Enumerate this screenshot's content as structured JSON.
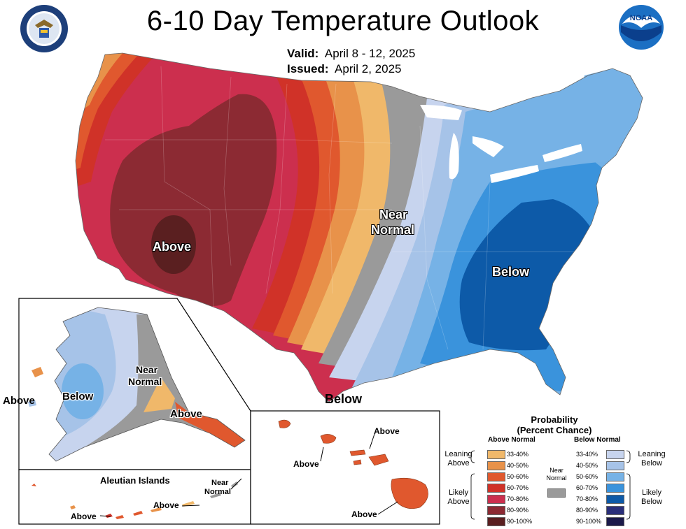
{
  "header": {
    "title": "6-10 Day Temperature Outlook",
    "valid_label": "Valid:",
    "valid_value": "April 8 - 12, 2025",
    "issued_label": "Issued:",
    "issued_value": "April 2, 2025"
  },
  "logos": {
    "seal": "Department of Commerce seal",
    "noaa": "NOAA"
  },
  "map_labels": {
    "conus_above": "Above",
    "conus_near_normal_1": "Near",
    "conus_near_normal_2": "Normal",
    "conus_below": "Below",
    "conus_below_south": "Below",
    "alaska_above_west": "Above",
    "alaska_below": "Below",
    "alaska_near_1": "Near",
    "alaska_near_2": "Normal",
    "alaska_above_se": "Above",
    "aleutian_title": "Aleutian Islands",
    "aleutian_above_1": "Above",
    "aleutian_above_2": "Above",
    "aleutian_near_1": "Near",
    "aleutian_near_2": "Normal",
    "hawaii_above_1": "Above",
    "hawaii_above_2": "Above",
    "hawaii_above_3": "Above"
  },
  "legend": {
    "title_1": "Probability",
    "title_2": "(Percent Chance)",
    "above_header": "Above Normal",
    "below_header": "Below Normal",
    "near_header_1": "Near",
    "near_header_2": "Normal",
    "leaning_above_1": "Leaning",
    "leaning_above_2": "Above",
    "likely_above_1": "Likely",
    "likely_above_2": "Above",
    "leaning_below_1": "Leaning",
    "leaning_below_2": "Below",
    "likely_below_1": "Likely",
    "likely_below_2": "Below",
    "above_bins": [
      {
        "label": "33-40%",
        "color": "#f0b86a"
      },
      {
        "label": "40-50%",
        "color": "#e8924a"
      },
      {
        "label": "50-60%",
        "color": "#e0582e"
      },
      {
        "label": "60-70%",
        "color": "#d03228"
      },
      {
        "label": "70-80%",
        "color": "#cc2f4e"
      },
      {
        "label": "80-90%",
        "color": "#8c2a33"
      },
      {
        "label": "90-100%",
        "color": "#5a1f20"
      }
    ],
    "below_bins": [
      {
        "label": "33-40%",
        "color": "#c7d4ee"
      },
      {
        "label": "40-50%",
        "color": "#a6c3e8"
      },
      {
        "label": "50-60%",
        "color": "#76b2e6"
      },
      {
        "label": "60-70%",
        "color": "#3a93dc"
      },
      {
        "label": "70-80%",
        "color": "#0d5aa8"
      },
      {
        "label": "80-90%",
        "color": "#2a2f7a"
      },
      {
        "label": "90-100%",
        "color": "#1b1a4a"
      }
    ],
    "near_color": "#9a9a9a"
  }
}
